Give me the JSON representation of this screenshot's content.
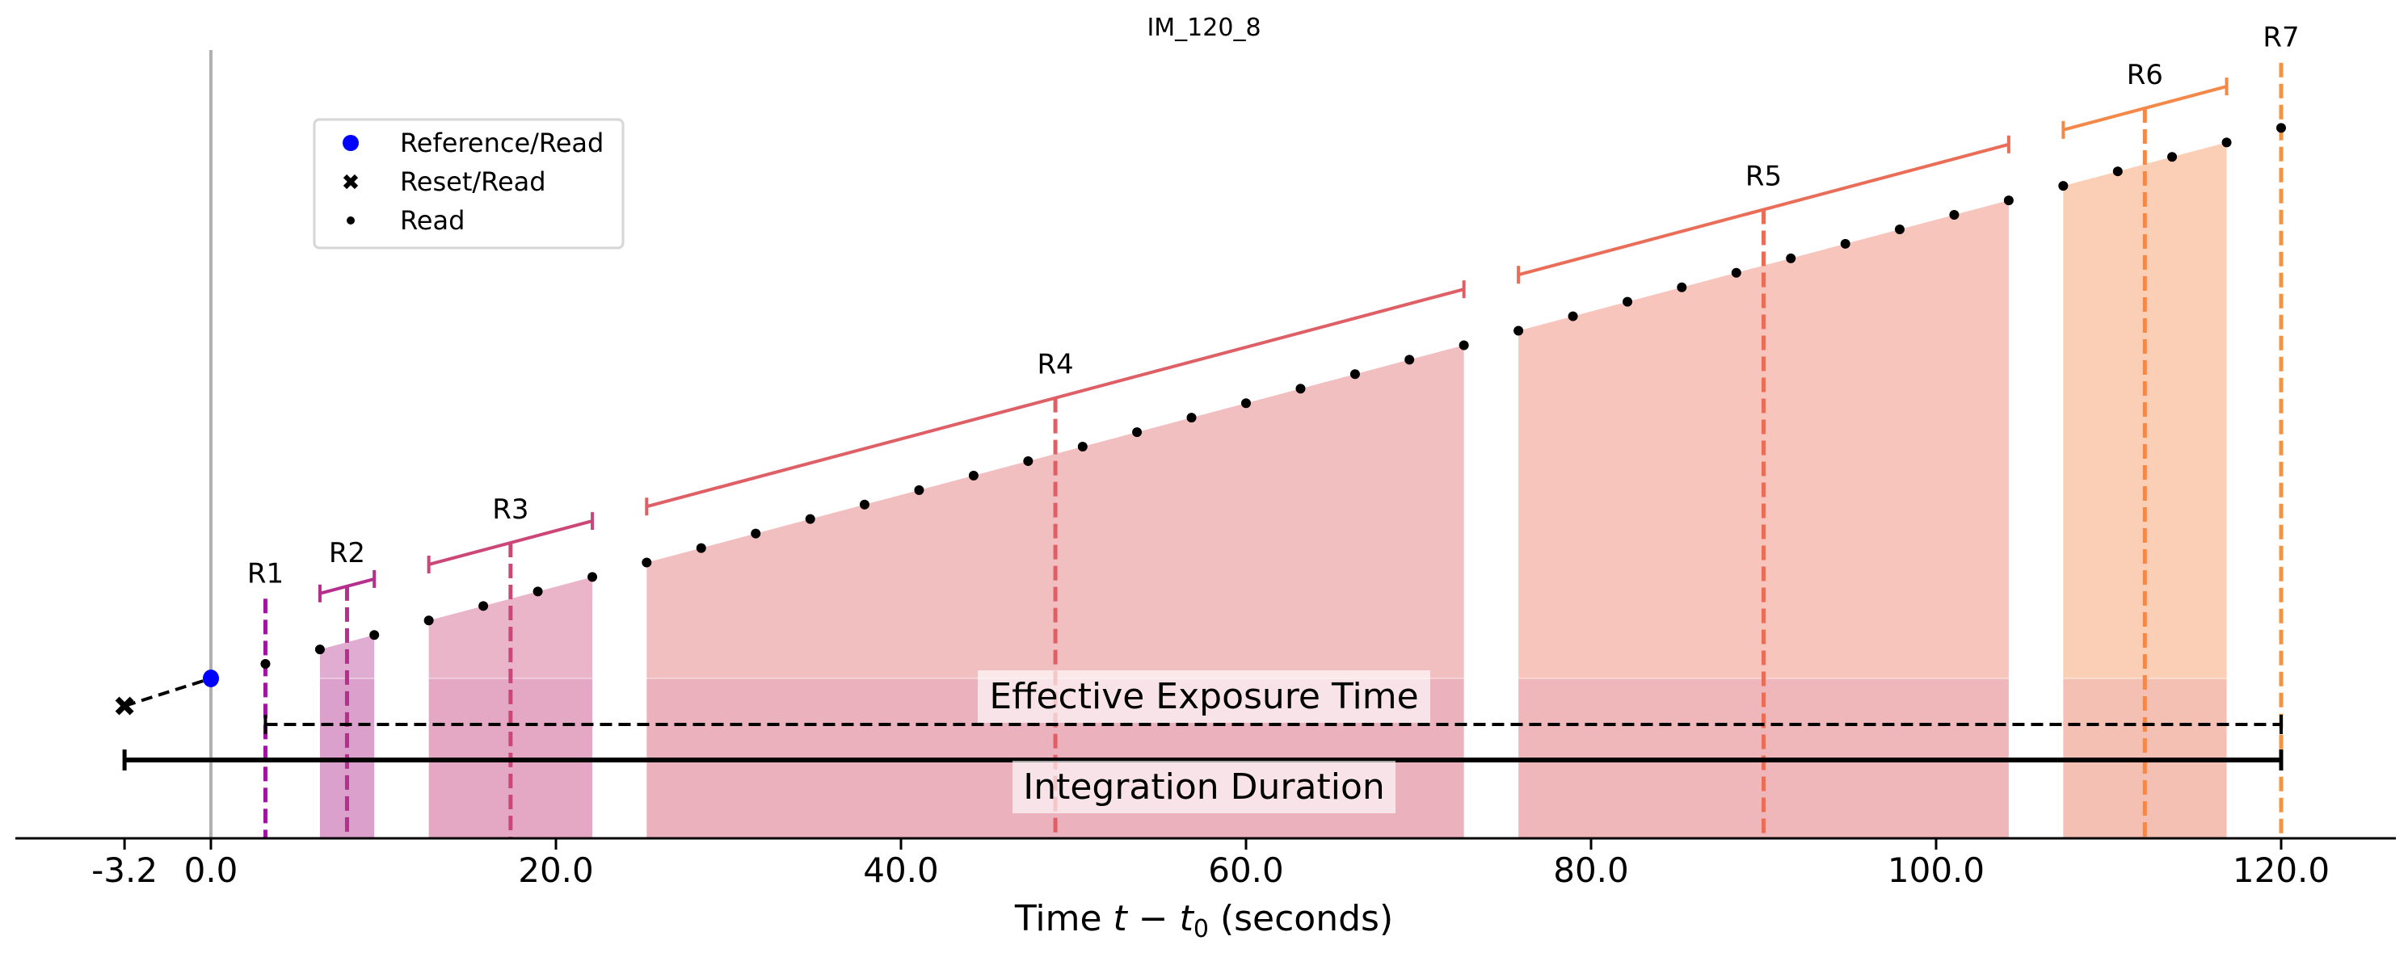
{
  "chart_data": {
    "type": "scatter",
    "title": "IM_120_8",
    "xlabel_prefix": "Time ",
    "xlabel_math": "t − t",
    "xlabel_sub": "0",
    "xlabel_suffix": " (seconds)",
    "ylabel": "",
    "x_ticks": [
      -3.2,
      0.0,
      20.0,
      40.0,
      60.0,
      80.0,
      100.0,
      120.0
    ],
    "x_tick_labels": [
      "-3.2",
      "0.0",
      "20.0",
      "40.0",
      "60.0",
      "80.0",
      "100.0",
      "120.0"
    ],
    "xlim": [
      -4.5,
      127
    ],
    "ylim": [
      -35,
      148
    ],
    "grid": false,
    "legend": {
      "placement": "upper-left",
      "entries": [
        {
          "label": "Reference/Read",
          "marker": "circle",
          "color": "#0000ff"
        },
        {
          "label": "Reset/Read",
          "marker": "x",
          "color": "#000000"
        },
        {
          "label": "Read",
          "marker": "dot",
          "color": "#000000"
        }
      ]
    },
    "reset": {
      "t": -3.2,
      "y": -6
    },
    "reference": {
      "t": 0.0,
      "y": 0
    },
    "groups": [
      {
        "label": "R1",
        "color": "#9c179e",
        "mean_t": 3.16,
        "reads": [
          [
            3.16,
            3.16
          ]
        ]
      },
      {
        "label": "R2",
        "color": "#b52f8c",
        "mean_t": 7.89,
        "reads": [
          [
            6.32,
            6.32
          ],
          [
            9.47,
            9.47
          ]
        ]
      },
      {
        "label": "R3",
        "color": "#cc4778",
        "mean_t": 17.37,
        "reads": [
          [
            12.63,
            12.63
          ],
          [
            15.79,
            15.79
          ],
          [
            18.95,
            18.95
          ],
          [
            22.11,
            22.11
          ]
        ]
      },
      {
        "label": "R4",
        "color": "#de5f65",
        "mean_t": 48.95,
        "reads": [
          [
            25.26,
            25.26
          ],
          [
            28.42,
            28.42
          ],
          [
            31.58,
            31.58
          ],
          [
            34.74,
            34.74
          ],
          [
            37.89,
            37.89
          ],
          [
            41.05,
            41.05
          ],
          [
            44.21,
            44.21
          ],
          [
            47.37,
            47.37
          ],
          [
            50.53,
            50.53
          ],
          [
            53.68,
            53.68
          ],
          [
            56.84,
            56.84
          ],
          [
            60.0,
            60.0
          ],
          [
            63.16,
            63.16
          ],
          [
            66.32,
            66.32
          ],
          [
            69.47,
            69.47
          ],
          [
            72.63,
            72.63
          ]
        ]
      },
      {
        "label": "R5",
        "color": "#ea6d58",
        "mean_t": 90.0,
        "reads": [
          [
            75.79,
            75.79
          ],
          [
            78.95,
            78.95
          ],
          [
            82.11,
            82.11
          ],
          [
            85.26,
            85.26
          ],
          [
            88.42,
            88.42
          ],
          [
            91.58,
            91.58
          ],
          [
            94.74,
            94.74
          ],
          [
            97.89,
            97.89
          ],
          [
            101.05,
            101.05
          ],
          [
            104.21,
            104.21
          ]
        ]
      },
      {
        "label": "R6",
        "color": "#f48849",
        "mean_t": 112.1,
        "reads": [
          [
            107.37,
            107.37
          ],
          [
            110.53,
            110.53
          ],
          [
            113.68,
            113.68
          ],
          [
            116.84,
            116.84
          ]
        ]
      },
      {
        "label": "R7",
        "color": "#f59440",
        "mean_t": 120.0,
        "reads": [
          [
            120.0,
            120.0
          ]
        ]
      }
    ],
    "annotations": {
      "effective_exposure": {
        "label": "Effective Exposure Time",
        "t_start": 3.16,
        "t_end": 120.0
      },
      "integration_duration": {
        "label": "Integration Duration",
        "t_start": -3.2,
        "t_end": 120.0
      }
    }
  }
}
